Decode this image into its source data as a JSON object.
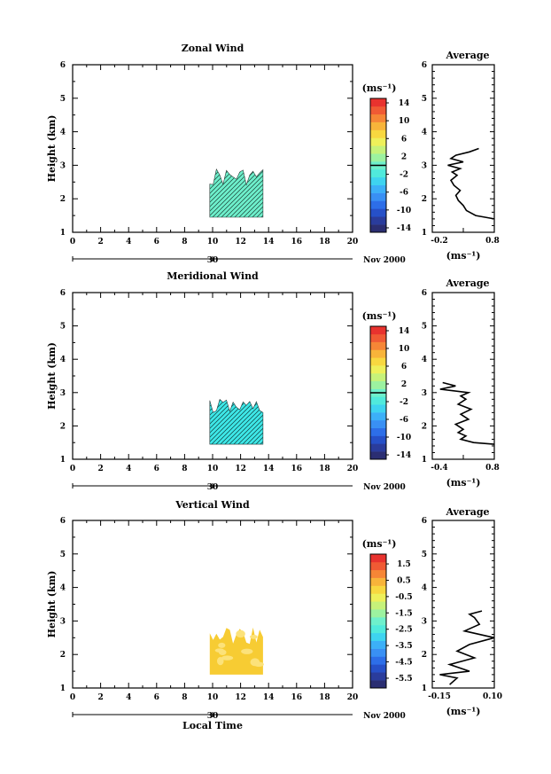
{
  "chart_data": [
    {
      "type": "heatmap",
      "title": "Zonal Wind",
      "ylabel": "Height (km)",
      "xlabel": "",
      "xlim": [
        0,
        20
      ],
      "ylim": [
        1,
        6
      ],
      "x_ticks": [
        "0",
        "2",
        "4",
        "6",
        "8",
        "10",
        "12",
        "14",
        "16",
        "18",
        "20"
      ],
      "y_ticks": [
        "1",
        "2",
        "3",
        "4",
        "5",
        "6"
      ],
      "date_axis": {
        "day": "30",
        "month_year": "Nov 2000"
      },
      "data_region": {
        "x_range": [
          9.8,
          13.6
        ],
        "y_range": [
          1.45,
          3.0
        ],
        "dominant_color": "#6ef0cc",
        "dominant_value": 0
      },
      "colorbar": {
        "unit": "(ms⁻¹)",
        "min": -15,
        "max": 15,
        "ticks": [
          "14",
          "10",
          "6",
          "2",
          "-2",
          "-6",
          "-10",
          "-14"
        ],
        "tick_values": [
          14,
          10,
          6,
          2,
          -2,
          -6,
          -10,
          -14
        ],
        "zero_line": 0
      },
      "average_profile": {
        "title": "Average",
        "xlabel": "(ms⁻¹)",
        "xlim": [
          -0.2,
          0.8
        ],
        "x_ticks": [
          "-0.2",
          "0.8"
        ],
        "extra_tick": "0.3",
        "y_ticks": [
          "1",
          "2",
          "3",
          "4",
          "5",
          "6"
        ],
        "x": [
          0.55,
          0.4,
          0.18,
          0.1,
          0.3,
          0.05,
          0.25,
          0.12,
          0.2,
          0.1,
          0.15,
          0.25,
          0.18,
          0.22,
          0.3,
          0.35,
          0.5,
          0.8
        ],
        "y": [
          3.5,
          3.4,
          3.3,
          3.2,
          3.1,
          3.0,
          2.9,
          2.8,
          2.7,
          2.55,
          2.4,
          2.25,
          2.1,
          1.95,
          1.8,
          1.65,
          1.5,
          1.4
        ]
      }
    },
    {
      "type": "heatmap",
      "title": "Meridional Wind",
      "ylabel": "Height (km)",
      "xlabel": "",
      "xlim": [
        0,
        20
      ],
      "ylim": [
        1,
        6
      ],
      "x_ticks": [
        "0",
        "2",
        "4",
        "6",
        "8",
        "10",
        "12",
        "14",
        "16",
        "18",
        "20"
      ],
      "y_ticks": [
        "1",
        "2",
        "3",
        "4",
        "5",
        "6"
      ],
      "date_axis": {
        "day": "30",
        "month_year": "Nov 2000"
      },
      "data_region": {
        "x_range": [
          9.8,
          13.6
        ],
        "y_range": [
          1.45,
          2.9
        ],
        "dominant_color": "#3ee8e8",
        "dominant_value": -1
      },
      "colorbar": {
        "unit": "(ms⁻¹)",
        "min": -15,
        "max": 15,
        "ticks": [
          "14",
          "10",
          "6",
          "2",
          "-2",
          "-6",
          "-10",
          "-14"
        ],
        "tick_values": [
          14,
          10,
          6,
          2,
          -2,
          -6,
          -10,
          -14
        ],
        "zero_line": 0
      },
      "average_profile": {
        "title": "Average",
        "xlabel": "(ms⁻¹)",
        "xlim": [
          -0.4,
          0.8
        ],
        "x_ticks": [
          "-0.4",
          "0.8"
        ],
        "extra_tick": "0.2",
        "y_ticks": [
          "1",
          "2",
          "3",
          "4",
          "5",
          "6"
        ],
        "x": [
          -0.2,
          0.05,
          -0.25,
          0.3,
          0.15,
          0.25,
          0.1,
          0.35,
          0.15,
          0.3,
          0.05,
          0.2,
          0.1,
          0.25,
          0.15,
          0.4,
          0.8
        ],
        "y": [
          3.3,
          3.2,
          3.1,
          3.0,
          2.9,
          2.8,
          2.65,
          2.5,
          2.35,
          2.2,
          2.05,
          1.9,
          1.8,
          1.7,
          1.6,
          1.5,
          1.45
        ]
      }
    },
    {
      "type": "heatmap",
      "title": "Vertical Wind",
      "ylabel": "Height (km)",
      "xlabel": "Local Time",
      "xlim": [
        0,
        20
      ],
      "ylim": [
        1,
        6
      ],
      "x_ticks": [
        "0",
        "2",
        "4",
        "6",
        "8",
        "10",
        "12",
        "14",
        "16",
        "18",
        "20"
      ],
      "y_ticks": [
        "1",
        "2",
        "3",
        "4",
        "5",
        "6"
      ],
      "date_axis": {
        "day": "30",
        "month_year": "Nov 2000"
      },
      "data_region": {
        "x_range": [
          9.8,
          13.6
        ],
        "y_range": [
          1.4,
          2.9
        ],
        "dominant_color": "#f7cc33",
        "dominant_value": 0.6
      },
      "colorbar": {
        "unit": "(ms⁻¹)",
        "min": -6.1,
        "max": 2.1,
        "ticks": [
          "1.5",
          "0.5",
          "-0.5",
          "-1.5",
          "-2.5",
          "-3.5",
          "-4.5",
          "-5.5"
        ],
        "tick_values": [
          1.5,
          0.5,
          -0.5,
          -1.5,
          -2.5,
          -3.5,
          -4.5,
          -5.5
        ]
      },
      "average_profile": {
        "title": "Average",
        "xlabel": "(ms⁻¹)",
        "xlim": [
          -0.15,
          0.1
        ],
        "x_ticks": [
          "-0.15",
          "0.10"
        ],
        "y_ticks": [
          "1",
          "2",
          "3",
          "4",
          "5",
          "6"
        ],
        "x": [
          0.05,
          0.0,
          0.02,
          0.04,
          -0.02,
          0.1,
          0.0,
          -0.05,
          0.02,
          -0.08,
          0.0,
          -0.12,
          -0.05,
          -0.08
        ],
        "y": [
          3.3,
          3.2,
          3.1,
          2.9,
          2.7,
          2.5,
          2.3,
          2.1,
          1.9,
          1.7,
          1.5,
          1.4,
          1.3,
          1.1
        ]
      }
    }
  ]
}
